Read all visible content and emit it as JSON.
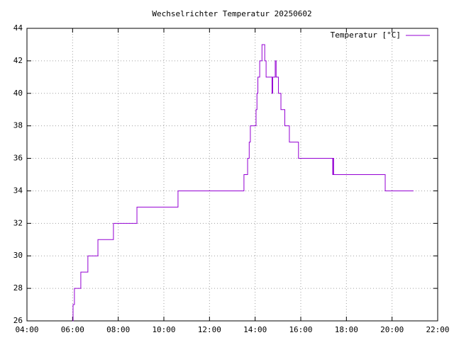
{
  "chart_data": {
    "type": "line",
    "title": "Wechselrichter Temperatur 20250602",
    "series": [
      {
        "name": "Temperatur [°C]",
        "color": "#9400d3",
        "x": [
          6.0,
          6.02,
          6.02,
          6.08,
          6.08,
          6.36,
          6.36,
          6.67,
          6.67,
          7.11,
          7.11,
          7.79,
          7.79,
          8.82,
          8.82,
          10.62,
          10.62,
          13.51,
          13.51,
          13.67,
          13.67,
          13.74,
          13.74,
          13.79,
          13.79,
          14.04,
          14.04,
          14.08,
          14.08,
          14.12,
          14.12,
          14.2,
          14.2,
          14.3,
          14.3,
          14.42,
          14.42,
          14.48,
          14.48,
          14.74,
          14.74,
          14.77,
          14.77,
          14.88,
          14.88,
          14.92,
          14.92,
          15.02,
          15.02,
          15.13,
          15.13,
          15.3,
          15.3,
          15.5,
          15.5,
          15.9,
          15.9,
          17.4,
          17.4,
          17.42,
          17.42,
          17.44,
          17.44,
          19.7,
          19.7,
          20.94
        ],
        "values": [
          26,
          26,
          27,
          27,
          28,
          28,
          29,
          29,
          30,
          30,
          31,
          31,
          32,
          32,
          33,
          33,
          34,
          34,
          35,
          35,
          36,
          36,
          37,
          37,
          38,
          38,
          39,
          39,
          40,
          40,
          41,
          41,
          42,
          42,
          43,
          43,
          42,
          42,
          41,
          41,
          40,
          40,
          41,
          41,
          42,
          42,
          41,
          41,
          40,
          40,
          39,
          39,
          38,
          38,
          37,
          37,
          36,
          36,
          35,
          35,
          36,
          36,
          35,
          35,
          34,
          34
        ]
      }
    ],
    "xlim": [
      4,
      22
    ],
    "xticks": [
      {
        "value": 4,
        "label": "04:00"
      },
      {
        "value": 6,
        "label": "06:00"
      },
      {
        "value": 8,
        "label": "08:00"
      },
      {
        "value": 10,
        "label": "10:00"
      },
      {
        "value": 12,
        "label": "12:00"
      },
      {
        "value": 14,
        "label": "14:00"
      },
      {
        "value": 16,
        "label": "16:00"
      },
      {
        "value": 18,
        "label": "18:00"
      },
      {
        "value": 20,
        "label": "20:00"
      },
      {
        "value": 22,
        "label": "22:00"
      }
    ],
    "ylim": [
      26,
      44
    ],
    "yticks": [
      26,
      28,
      30,
      32,
      34,
      36,
      38,
      40,
      42,
      44
    ],
    "grid": true,
    "legend": "top-right"
  }
}
